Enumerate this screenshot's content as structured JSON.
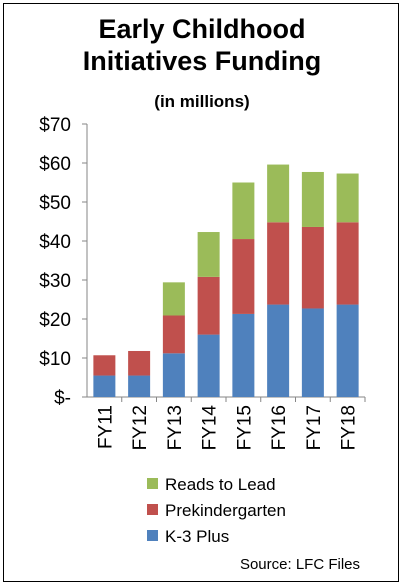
{
  "chart_data": {
    "type": "bar",
    "stacked": true,
    "title": "Early Childhood Initiatives Funding",
    "title_lines": [
      "Early Childhood",
      "Initiatives Funding"
    ],
    "subtitle": "(in millions)",
    "categories": [
      "FY11",
      "FY12",
      "FY13",
      "FY14",
      "FY15",
      "FY16",
      "FY17",
      "FY18"
    ],
    "series": [
      {
        "name": "K-3 Plus",
        "color": "#4f81bd",
        "values": [
          5.5,
          5.5,
          11.2,
          16.0,
          21.3,
          23.7,
          22.7,
          23.7
        ]
      },
      {
        "name": "Prekindergarten",
        "color": "#c0504d",
        "values": [
          5.2,
          6.3,
          9.7,
          14.8,
          19.2,
          21.1,
          20.9,
          21.1
        ]
      },
      {
        "name": "Reads to Lead",
        "color": "#9bbb59",
        "values": [
          0,
          0,
          8.5,
          11.5,
          14.5,
          14.8,
          14.1,
          12.5
        ]
      }
    ],
    "legend_order": [
      "Reads to Lead",
      "Prekindergarten",
      "K-3 Plus"
    ],
    "legend_position": "bottom",
    "ylim": [
      0,
      70
    ],
    "yticks": [
      0,
      10,
      20,
      30,
      40,
      50,
      60,
      70
    ],
    "ytick_labels": [
      "$-",
      "$10",
      "$20",
      "$30",
      "$40",
      "$50",
      "$60",
      "$70"
    ],
    "grid": false,
    "xlabel": "",
    "ylabel": ""
  },
  "source": "Source: LFC Files"
}
